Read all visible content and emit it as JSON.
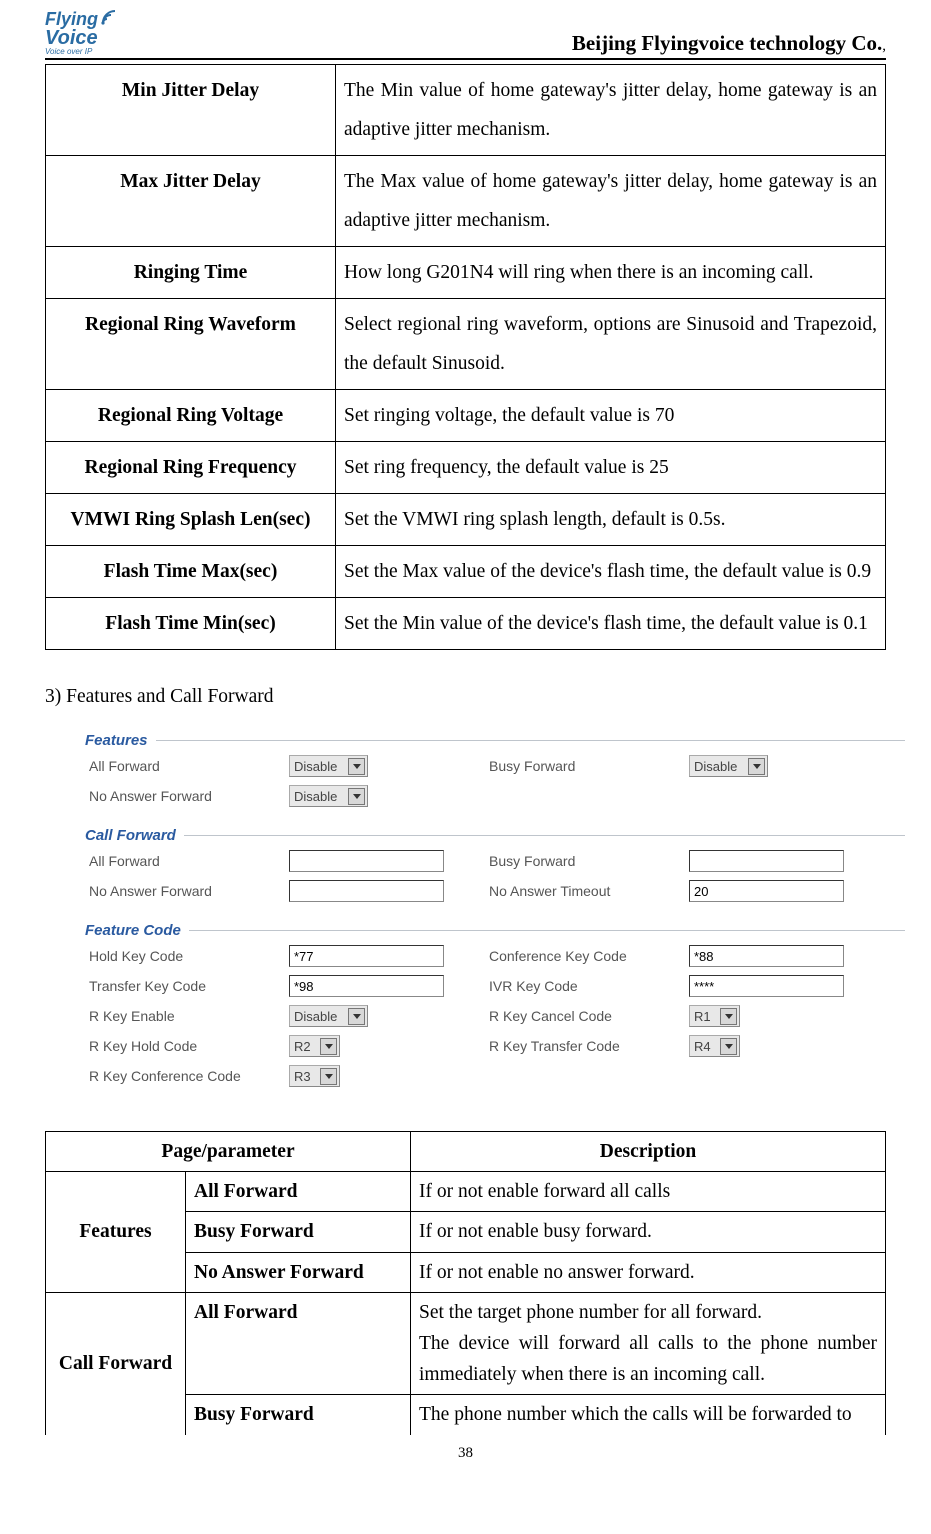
{
  "header": {
    "logo_flying": "Flying",
    "logo_voice": "Voice",
    "logo_tag": "Voice over IP",
    "company": "Beijing Flyingvoice technology Co.",
    "company_suffix": ","
  },
  "table1": [
    {
      "label": "Min Jitter Delay",
      "desc": "The Min value of home gateway's jitter delay, home gateway is an adaptive jitter mechanism."
    },
    {
      "label": "Max Jitter Delay",
      "desc": "The Max value of home gateway's jitter delay, home gateway is an adaptive jitter mechanism."
    },
    {
      "label": "Ringing Time",
      "desc": "How long G201N4 will ring when there is an incoming call."
    },
    {
      "label": "Regional Ring Waveform",
      "desc": "Select regional ring waveform, options are Sinusoid and Trapezoid, the default Sinusoid."
    },
    {
      "label": "Regional Ring Voltage",
      "desc": "Set ringing voltage, the default value is 70"
    },
    {
      "label": "Regional Ring Frequency",
      "desc": "Set ring frequency, the default value is 25"
    },
    {
      "label": "VMWI Ring Splash Len(sec)",
      "desc": "Set the VMWI ring splash length, default is 0.5s."
    },
    {
      "label": "Flash Time Max(sec)",
      "desc": "Set the Max value of the device's flash time, the default value is 0.9"
    },
    {
      "label": "Flash Time Min(sec)",
      "desc": "Set the Min value of the device's flash time, the default value is 0.1"
    }
  ],
  "section_title": "3) Features and Call Forward",
  "shot": {
    "features": {
      "title": "Features",
      "all_forward_label": "All Forward",
      "all_forward_value": "Disable",
      "busy_forward_label": "Busy Forward",
      "busy_forward_value": "Disable",
      "no_answer_forward_label": "No Answer Forward",
      "no_answer_forward_value": "Disable"
    },
    "call_forward": {
      "title": "Call Forward",
      "all_forward_label": "All Forward",
      "all_forward_value": "",
      "busy_forward_label": "Busy Forward",
      "busy_forward_value": "",
      "no_answer_forward_label": "No Answer Forward",
      "no_answer_forward_value": "",
      "no_answer_timeout_label": "No Answer Timeout",
      "no_answer_timeout_value": "20"
    },
    "feature_code": {
      "title": "Feature Code",
      "hold_key_label": "Hold Key Code",
      "hold_key_value": "*77",
      "conference_key_label": "Conference Key Code",
      "conference_key_value": "*88",
      "transfer_key_label": "Transfer Key Code",
      "transfer_key_value": "*98",
      "ivr_key_label": "IVR Key Code",
      "ivr_key_value": "****",
      "r_key_enable_label": "R Key Enable",
      "r_key_enable_value": "Disable",
      "r_key_cancel_label": "R Key Cancel Code",
      "r_key_cancel_value": "R1",
      "r_key_hold_label": "R Key Hold Code",
      "r_key_hold_value": "R2",
      "r_key_transfer_label": "R Key Transfer Code",
      "r_key_transfer_value": "R4",
      "r_key_conference_label": "R Key Conference Code",
      "r_key_conference_value": "R3"
    }
  },
  "table2": {
    "header_param": "Page/parameter",
    "header_desc": "Description",
    "groups": {
      "features": {
        "name": "Features",
        "rows": [
          {
            "param": "All Forward",
            "desc": "If or not enable forward all calls"
          },
          {
            "param": "Busy Forward",
            "desc": "If or not enable busy forward."
          },
          {
            "param": "No Answer Forward",
            "desc": "If or not enable no answer forward."
          }
        ]
      },
      "call_forward": {
        "name": "Call Forward",
        "rows": [
          {
            "param": "All Forward",
            "desc": "Set the target phone number for all forward.\nThe device will forward all calls to the phone number immediately when there is an incoming call."
          },
          {
            "param": "Busy Forward",
            "desc": "The phone number which the calls will be forwarded to"
          }
        ]
      }
    }
  },
  "page_number": "38"
}
